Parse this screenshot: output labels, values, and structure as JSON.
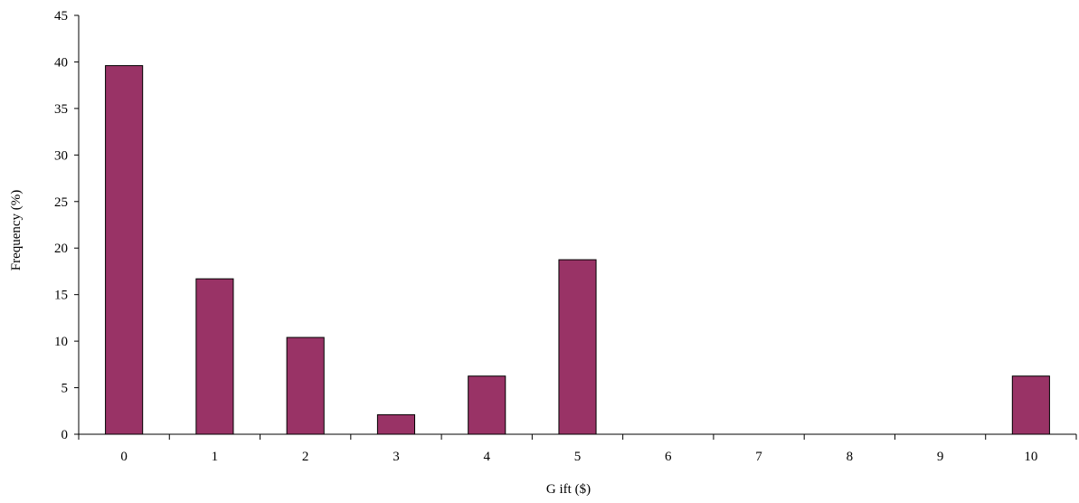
{
  "chart_data": {
    "type": "bar",
    "categories": [
      "0",
      "1",
      "2",
      "3",
      "4",
      "5",
      "6",
      "7",
      "8",
      "9",
      "10"
    ],
    "values": [
      39.6,
      16.7,
      10.4,
      2.1,
      6.25,
      18.75,
      0,
      0,
      0,
      0,
      6.25
    ],
    "xlabel": "G ift ($)",
    "ylabel": "Frequency (%)",
    "ylim": [
      0,
      45
    ],
    "yticks": [
      "0",
      "5",
      "10",
      "15",
      "20",
      "25",
      "30",
      "35",
      "40",
      "45"
    ],
    "grid": false,
    "bar_color": "#993366",
    "bar_edge_color": "#000000"
  }
}
